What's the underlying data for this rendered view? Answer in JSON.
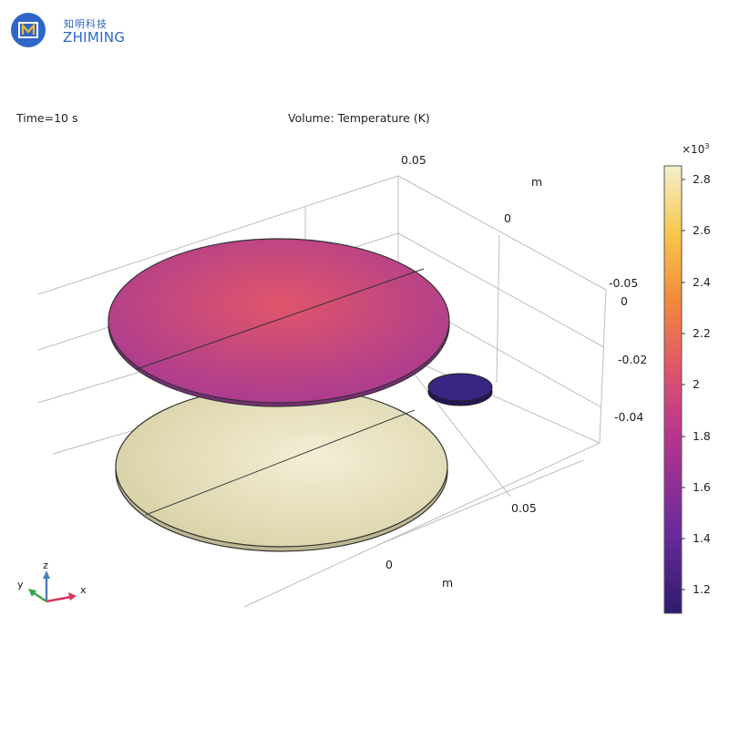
{
  "logo": {
    "cn_text": "知明科技",
    "en_text": "ZHIMING"
  },
  "header": {
    "time_label": "Time=10 s",
    "plot_title": "Volume: Temperature (K)"
  },
  "colorbar": {
    "multiplier_base": "×10",
    "multiplier_exp": "3",
    "ticks": [
      "2.8",
      "2.6",
      "2.4",
      "2.2",
      "2",
      "1.8",
      "1.6",
      "1.4",
      "1.2"
    ],
    "range": [
      1.1,
      2.85
    ],
    "colors": [
      "#2f1b6b",
      "#6a2a9c",
      "#b9358f",
      "#e0566a",
      "#f28a3b",
      "#f7c74b",
      "#f6f0cf"
    ]
  },
  "axes": {
    "z_ticks": [
      "0.05"
    ],
    "right_ticks": [
      "-0.05",
      "0",
      "-0.02",
      "-0.04"
    ],
    "y_ticks": [
      "0"
    ],
    "x_ticks": [
      "0.05",
      "0"
    ],
    "unit_top": "m",
    "unit_bottom": "m"
  },
  "triad": {
    "x": "x",
    "y": "y",
    "z": "z"
  },
  "objects": {
    "top_disk_colors": [
      "#e0556a",
      "#a83a93"
    ],
    "bottom_disk_colors": [
      "#f4eed6",
      "#d6cfa2"
    ],
    "small_disk_color": "#3a2580"
  }
}
